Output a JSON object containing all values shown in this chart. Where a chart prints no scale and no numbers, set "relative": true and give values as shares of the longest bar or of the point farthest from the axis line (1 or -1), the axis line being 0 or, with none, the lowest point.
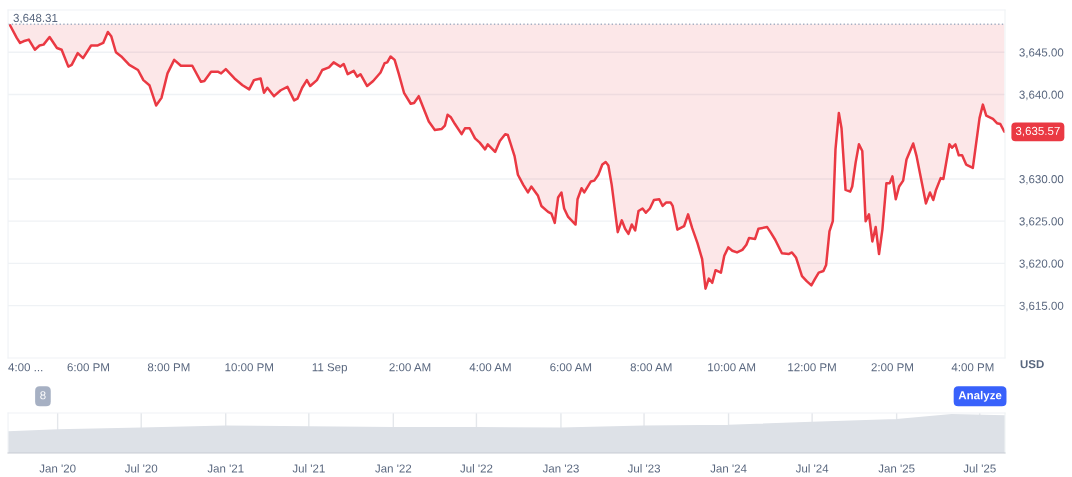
{
  "chart_data": [
    {
      "type": "line",
      "color": "#ea3943",
      "x": [
        "2025-09-10T16:03",
        "2025-09-10T16:13",
        "2025-09-10T16:18",
        "2025-09-10T16:23",
        "2025-09-10T16:31",
        "2025-09-10T16:40",
        "2025-09-10T16:47",
        "2025-09-10T16:53",
        "2025-09-10T17:02",
        "2025-09-10T17:13",
        "2025-09-10T17:20",
        "2025-09-10T17:30",
        "2025-09-10T17:35",
        "2025-09-10T17:44",
        "2025-09-10T17:52",
        "2025-09-10T18:04",
        "2025-09-10T18:14",
        "2025-09-10T18:22",
        "2025-09-10T18:29",
        "2025-09-10T18:34",
        "2025-09-10T18:41",
        "2025-09-10T18:49",
        "2025-09-10T19:01",
        "2025-09-10T19:14",
        "2025-09-10T19:22",
        "2025-09-10T19:31",
        "2025-09-10T19:41",
        "2025-09-10T19:49",
        "2025-09-10T19:58",
        "2025-09-10T20:08",
        "2025-09-10T20:18",
        "2025-09-10T20:35",
        "2025-09-10T20:48",
        "2025-09-10T20:53",
        "2025-09-10T21:03",
        "2025-09-10T21:13",
        "2025-09-10T21:18",
        "2025-09-10T21:25",
        "2025-09-10T21:38",
        "2025-09-10T21:50",
        "2025-09-10T22:00",
        "2025-09-10T22:07",
        "2025-09-10T22:17",
        "2025-09-10T22:22",
        "2025-09-10T22:27",
        "2025-09-10T22:37",
        "2025-09-10T22:47",
        "2025-09-10T22:57",
        "2025-09-10T23:07",
        "2025-09-10T23:12",
        "2025-09-10T23:19",
        "2025-09-10T23:26",
        "2025-09-10T23:31",
        "2025-09-10T23:41",
        "2025-09-10T23:49",
        "2025-09-10T23:59",
        "2025-09-11T00:06",
        "2025-09-11T00:16",
        "2025-09-11T00:21",
        "2025-09-11T00:27",
        "2025-09-11T00:36",
        "2025-09-11T00:41",
        "2025-09-11T00:46",
        "2025-09-11T00:56",
        "2025-09-11T01:05",
        "2025-09-11T01:16",
        "2025-09-11T01:22",
        "2025-09-11T01:26",
        "2025-09-11T01:31",
        "2025-09-11T01:37",
        "2025-09-11T01:43",
        "2025-09-11T01:51",
        "2025-09-11T02:01",
        "2025-09-11T02:06",
        "2025-09-11T02:13",
        "2025-09-11T02:21",
        "2025-09-11T02:28",
        "2025-09-11T02:37",
        "2025-09-11T02:47",
        "2025-09-11T02:52",
        "2025-09-11T02:56",
        "2025-09-11T03:01",
        "2025-09-11T03:07",
        "2025-09-11T03:17",
        "2025-09-11T03:22",
        "2025-09-11T03:29",
        "2025-09-11T03:37",
        "2025-09-11T03:44",
        "2025-09-11T03:52",
        "2025-09-11T03:56",
        "2025-09-11T04:07",
        "2025-09-11T04:14",
        "2025-09-11T04:22",
        "2025-09-11T04:26",
        "2025-09-11T04:36",
        "2025-09-11T04:41",
        "2025-09-11T04:49",
        "2025-09-11T04:56",
        "2025-09-11T05:01",
        "2025-09-11T05:11",
        "2025-09-11T05:16",
        "2025-09-11T05:26",
        "2025-09-11T05:31",
        "2025-09-11T05:36",
        "2025-09-11T05:41",
        "2025-09-11T05:46",
        "2025-09-11T05:50",
        "2025-09-11T05:56",
        "2025-09-11T06:07",
        "2025-09-11T06:10",
        "2025-09-11T06:16",
        "2025-09-11T06:20",
        "2025-09-11T06:30",
        "2025-09-11T06:35",
        "2025-09-11T06:41",
        "2025-09-11T06:47",
        "2025-09-11T06:52",
        "2025-09-11T06:56",
        "2025-09-11T07:01",
        "2025-09-11T07:10",
        "2025-09-11T07:16",
        "2025-09-11T07:21",
        "2025-09-11T07:26",
        "2025-09-11T07:31",
        "2025-09-11T07:36",
        "2025-09-11T07:41",
        "2025-09-11T07:47",
        "2025-09-11T07:52",
        "2025-09-11T07:58",
        "2025-09-11T08:04",
        "2025-09-11T08:12",
        "2025-09-11T08:17",
        "2025-09-11T08:22",
        "2025-09-11T08:29",
        "2025-09-11T08:32",
        "2025-09-11T08:39",
        "2025-09-11T08:49",
        "2025-09-11T08:55",
        "2025-09-11T09:01",
        "2025-09-11T09:09",
        "2025-09-11T09:16",
        "2025-09-11T09:21",
        "2025-09-11T09:26",
        "2025-09-11T09:31",
        "2025-09-11T09:36",
        "2025-09-11T09:44",
        "2025-09-11T09:49",
        "2025-09-11T09:55",
        "2025-09-11T10:01",
        "2025-09-11T10:08",
        "2025-09-11T10:16",
        "2025-09-11T10:22",
        "2025-09-11T10:26",
        "2025-09-11T10:35",
        "2025-09-11T10:40",
        "2025-09-11T10:53",
        "2025-09-11T10:58",
        "2025-09-11T11:05",
        "2025-09-11T11:15",
        "2025-09-11T11:25",
        "2025-09-11T11:30",
        "2025-09-11T11:36",
        "2025-09-11T11:45",
        "2025-09-11T11:52",
        "2025-09-11T11:59",
        "2025-09-11T12:04",
        "2025-09-11T12:10",
        "2025-09-11T12:17",
        "2025-09-11T12:21",
        "2025-09-11T12:26",
        "2025-09-11T12:31",
        "2025-09-11T12:35",
        "2025-09-11T12:40",
        "2025-09-11T12:44",
        "2025-09-11T12:50",
        "2025-09-11T12:57",
        "2025-09-11T13:00",
        "2025-09-11T13:05",
        "2025-09-11T13:10",
        "2025-09-11T13:15",
        "2025-09-11T13:20",
        "2025-09-11T13:25",
        "2025-09-11T13:30",
        "2025-09-11T13:35",
        "2025-09-11T13:40",
        "2025-09-11T13:45",
        "2025-09-11T13:51",
        "2025-09-11T13:56",
        "2025-09-11T14:00",
        "2025-09-11T14:05",
        "2025-09-11T14:10",
        "2025-09-11T14:16",
        "2025-09-11T14:21",
        "2025-09-11T14:31",
        "2025-09-11T14:36",
        "2025-09-11T14:43",
        "2025-09-11T14:50",
        "2025-09-11T14:56",
        "2025-09-11T15:01",
        "2025-09-11T15:05",
        "2025-09-11T15:12",
        "2025-09-11T15:16",
        "2025-09-11T15:25",
        "2025-09-11T15:29",
        "2025-09-11T15:34",
        "2025-09-11T15:39",
        "2025-09-11T15:44",
        "2025-09-11T15:50",
        "2025-09-11T16:00",
        "2025-09-11T16:10",
        "2025-09-11T16:15",
        "2025-09-11T16:20",
        "2025-09-11T16:30",
        "2025-09-11T16:36",
        "2025-09-11T16:41",
        "2025-09-11T16:47"
      ],
      "values": [
        3648.2,
        3646.7,
        3646.1,
        3646.3,
        3646.5,
        3645.3,
        3645.8,
        3645.9,
        3646.8,
        3645.5,
        3645.3,
        3643.3,
        3643.5,
        3644.9,
        3644.3,
        3645.8,
        3645.8,
        3646.1,
        3647.4,
        3646.9,
        3645.0,
        3644.5,
        3643.5,
        3642.9,
        3641.7,
        3641.1,
        3638.7,
        3639.6,
        3642.5,
        3644.1,
        3643.4,
        3643.4,
        3641.5,
        3641.6,
        3642.7,
        3642.7,
        3642.5,
        3643.0,
        3641.9,
        3641.1,
        3640.6,
        3641.7,
        3641.9,
        3640.2,
        3640.8,
        3639.8,
        3640.5,
        3640.9,
        3639.3,
        3639.5,
        3640.8,
        3641.7,
        3641.0,
        3641.7,
        3642.9,
        3643.2,
        3643.8,
        3643.3,
        3643.6,
        3642.4,
        3642.8,
        3642.1,
        3642.4,
        3641.0,
        3641.6,
        3642.6,
        3643.7,
        3643.8,
        3644.5,
        3644.1,
        3642.5,
        3640.2,
        3638.9,
        3639.0,
        3639.8,
        3638.2,
        3636.8,
        3635.8,
        3635.9,
        3636.3,
        3637.6,
        3637.3,
        3636.5,
        3635.3,
        3636.0,
        3636.0,
        3634.8,
        3634.3,
        3633.5,
        3634.1,
        3633.2,
        3634.5,
        3635.3,
        3635.2,
        3632.7,
        3630.5,
        3629.3,
        3628.4,
        3629.1,
        3628.0,
        3626.8,
        3626.1,
        3625.9,
        3624.8,
        3627.8,
        3628.4,
        3626.5,
        3625.5,
        3624.6,
        3627.6,
        3628.9,
        3628.4,
        3629.7,
        3629.8,
        3630.5,
        3631.7,
        3632.0,
        3631.6,
        3629.3,
        3623.7,
        3625.1,
        3624.1,
        3623.5,
        3624.6,
        3623.9,
        3626.2,
        3626.5,
        3626.0,
        3626.5,
        3627.5,
        3627.6,
        3626.8,
        3627.2,
        3627.2,
        3626.8,
        3624.0,
        3624.4,
        3625.8,
        3624.2,
        3622.4,
        3620.5,
        3617.0,
        3618.2,
        3617.7,
        3619.2,
        3618.9,
        3620.9,
        3621.9,
        3621.5,
        3621.3,
        3621.6,
        3622.2,
        3623.0,
        3622.9,
        3624.1,
        3624.3,
        3623.7,
        3622.8,
        3621.2,
        3621.1,
        3621.3,
        3620.7,
        3618.5,
        3617.9,
        3617.4,
        3618.1,
        3618.9,
        3619.1,
        3619.8,
        3623.8,
        3625.0,
        3633.5,
        3637.8,
        3636.0,
        3628.7,
        3628.5,
        3629.1,
        3631.9,
        3634.1,
        3633.3,
        3625.0,
        3625.8,
        3622.6,
        3624.3,
        3621.1,
        3624.0,
        3629.5,
        3629.5,
        3630.3,
        3627.6,
        3629.1,
        3629.8,
        3632.3,
        3634.2,
        3632.7,
        3629.9,
        3627.1,
        3628.4,
        3627.5,
        3628.7,
        3630.1,
        3630.0,
        3634.1,
        3633.7,
        3634.1,
        3632.8,
        3632.8,
        3631.7,
        3631.3,
        3637.2,
        3638.8,
        3637.5,
        3637.1,
        3636.6,
        3636.5,
        3635.6
      ],
      "xlim": [
        "2025-09-10T16:00",
        "2025-09-11T16:48"
      ],
      "xticks": [
        {
          "value": "2025-09-10T16:00",
          "label": "4:00 ..."
        },
        {
          "value": "2025-09-10T18:00",
          "label": "6:00 PM"
        },
        {
          "value": "2025-09-10T20:00",
          "label": "8:00 PM"
        },
        {
          "value": "2025-09-10T22:00",
          "label": "10:00 PM"
        },
        {
          "value": "2025-09-11T00:00",
          "label": "11 Sep"
        },
        {
          "value": "2025-09-11T02:00",
          "label": "2:00 AM"
        },
        {
          "value": "2025-09-11T04:00",
          "label": "4:00 AM"
        },
        {
          "value": "2025-09-11T06:00",
          "label": "6:00 AM"
        },
        {
          "value": "2025-09-11T08:00",
          "label": "8:00 AM"
        },
        {
          "value": "2025-09-11T10:00",
          "label": "10:00 AM"
        },
        {
          "value": "2025-09-11T12:00",
          "label": "12:00 PM"
        },
        {
          "value": "2025-09-11T14:00",
          "label": "2:00 PM"
        },
        {
          "value": "2025-09-11T16:00",
          "label": "4:00 PM"
        }
      ],
      "ylim": [
        3608.8,
        3650.0
      ],
      "yticks": [
        {
          "value": 3615,
          "label": "3,615.00"
        },
        {
          "value": 3620,
          "label": "3,620.00"
        },
        {
          "value": 3625,
          "label": "3,625.00"
        },
        {
          "value": 3630,
          "label": "3,630.00"
        },
        {
          "value": 3640,
          "label": "3,640.00"
        },
        {
          "value": 3645,
          "label": "3,645.00"
        }
      ],
      "ylabel": "USD",
      "grid": "y",
      "ref_lines": [
        {
          "axis": "y",
          "value": 3648.31,
          "label": "3,648.31",
          "line_style": "dotted",
          "color": "#a6b0c3"
        }
      ],
      "annotations": [
        {
          "text": "3,635.57",
          "x": "2025-09-11T16:47",
          "y": 3635.57
        },
        "8",
        "Analyze"
      ]
    },
    {
      "type": "area",
      "relative": true,
      "color": "#dde1e7",
      "x": [
        "2019-09-15",
        "2020-01-01",
        "2020-07-01",
        "2021-01-01",
        "2021-07-01",
        "2022-01-01",
        "2022-07-01",
        "2023-01-01",
        "2023-07-01",
        "2024-01-01",
        "2024-07-01",
        "2025-01-01",
        "2025-05-01",
        "2025-08-25"
      ],
      "values": [
        0.55,
        0.6,
        0.65,
        0.7,
        0.68,
        0.66,
        0.66,
        0.65,
        0.7,
        0.72,
        0.8,
        0.87,
        1.0,
        0.97
      ],
      "xlim": [
        "2019-09-15",
        "2025-08-25"
      ],
      "xticks": [
        {
          "value": "2020-01-01",
          "label": "Jan '20"
        },
        {
          "value": "2020-07-01",
          "label": "Jul '20"
        },
        {
          "value": "2021-01-01",
          "label": "Jan '21"
        },
        {
          "value": "2021-07-01",
          "label": "Jul '21"
        },
        {
          "value": "2022-01-01",
          "label": "Jan '22"
        },
        {
          "value": "2022-07-01",
          "label": "Jul '22"
        },
        {
          "value": "2023-01-01",
          "label": "Jan '23"
        },
        {
          "value": "2023-07-01",
          "label": "Jul '23"
        },
        {
          "value": "2024-01-01",
          "label": "Jan '24"
        },
        {
          "value": "2024-07-01",
          "label": "Jul '24"
        },
        {
          "value": "2025-01-01",
          "label": "Jan '25"
        },
        {
          "value": "2025-07-01",
          "label": "Jul '25"
        }
      ],
      "grid": "x"
    }
  ]
}
